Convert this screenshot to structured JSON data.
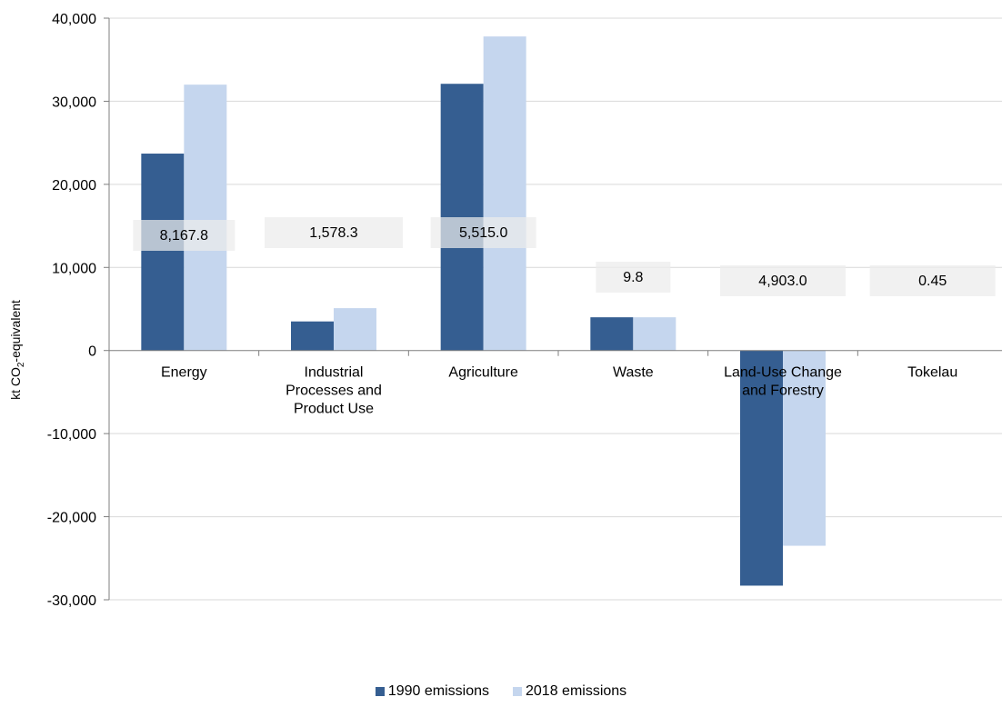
{
  "chart_data": {
    "type": "bar",
    "categories": [
      [
        "Energy"
      ],
      [
        "Industrial",
        "Processes and",
        "Product Use"
      ],
      [
        "Agriculture"
      ],
      [
        "Waste"
      ],
      [
        "Land-Use Change",
        "and Forestry"
      ],
      [
        "Tokelau"
      ]
    ],
    "series": [
      {
        "name": "1990 emissions",
        "color": "#355E91",
        "values": [
          23700,
          3500,
          32100,
          4000,
          -28300,
          0
        ]
      },
      {
        "name": "2018 emissions",
        "color": "#C5D6EE",
        "values": [
          32000,
          5100,
          37800,
          4000,
          -23500,
          0
        ]
      }
    ],
    "annotations": [
      "8,167.8",
      "1,578.3",
      "5,515.0",
      "9.8",
      "4,903.0",
      "0.45"
    ],
    "ylabel": {
      "main": "kt CO",
      "sub": "2",
      "suffix": "-equivalent"
    },
    "ylim": [
      -30000,
      40000
    ],
    "yticks": [
      40000,
      30000,
      20000,
      10000,
      0,
      -10000,
      -20000,
      -30000
    ],
    "ytick_labels": [
      "40,000",
      "30,000",
      "20,000",
      "10,000",
      "0",
      "-10,000",
      "-20,000",
      "-30,000"
    ],
    "grid": true,
    "legend_position": "bottom"
  }
}
